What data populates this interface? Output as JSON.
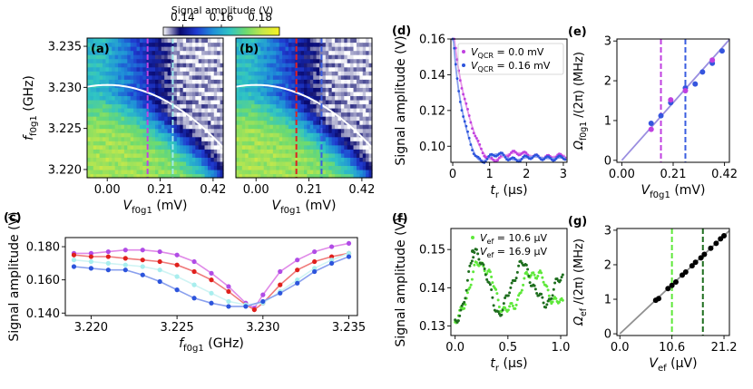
{
  "colorbar": {
    "label": "Signal amplitude (V)",
    "ticks": [
      "0.14",
      "0.16",
      "0.18"
    ],
    "range": [
      0.13,
      0.19
    ],
    "colormap": [
      "#ffffff",
      "#0a0a6e",
      "#1f3ad0",
      "#1f8fd8",
      "#30c4c4",
      "#6fdb6e",
      "#c6e84a",
      "#f9f221"
    ]
  },
  "chart_data": [
    {
      "id": "a",
      "panel_label": "(a)",
      "type": "heatmap",
      "xlabel": "V",
      "xlabel_sub": "f0g1",
      "xlabel_unit": "(mV)",
      "ylabel": "f",
      "ylabel_sub": "f0g1",
      "ylabel_unit": "(GHz)",
      "xlim": [
        -0.08,
        0.46
      ],
      "ylim": [
        3.219,
        3.236
      ],
      "xticks": [
        "0.00",
        "0.21",
        "0.42"
      ],
      "xtick_values": [
        0.0,
        0.21,
        0.42
      ],
      "yticks": [
        "3.220",
        "3.225",
        "3.230",
        "3.235"
      ],
      "ytick_values": [
        3.22,
        3.225,
        3.23,
        3.235
      ],
      "resonance": {
        "f0": 3.2303,
        "k": 0.036,
        "color": "#ffffff"
      },
      "vlines": [
        {
          "x": 0.16,
          "color": "#c045e0"
        },
        {
          "x": 0.26,
          "color": "#a0ecec"
        }
      ]
    },
    {
      "id": "b",
      "panel_label": "(b)",
      "type": "heatmap",
      "xlabel": "V",
      "xlabel_sub": "f0g1",
      "xlabel_unit": "(mV)",
      "xlim": [
        -0.08,
        0.46
      ],
      "ylim": [
        3.219,
        3.236
      ],
      "xticks": [
        "0.00",
        "0.21",
        "0.42"
      ],
      "xtick_values": [
        0.0,
        0.21,
        0.42
      ],
      "resonance": {
        "f0": 3.2303,
        "k": 0.036,
        "color": "#ffffff"
      },
      "vlines": [
        {
          "x": 0.16,
          "color": "#e02020"
        },
        {
          "x": 0.26,
          "color": "#3a5de0"
        }
      ]
    },
    {
      "id": "c",
      "panel_label": "(c)",
      "type": "scatter",
      "xlabel": "f",
      "xlabel_sub": "f0g1",
      "xlabel_unit": "(GHz)",
      "ylabel": "Signal amplitude (V)",
      "xlim": [
        3.2185,
        3.2355
      ],
      "ylim": [
        0.1385,
        0.1855
      ],
      "xticks": [
        "3.220",
        "3.225",
        "3.230",
        "3.235"
      ],
      "xtick_values": [
        3.22,
        3.225,
        3.23,
        3.235
      ],
      "yticks": [
        "0.140",
        "0.160",
        "0.180"
      ],
      "ytick_values": [
        0.14,
        0.16,
        0.18
      ],
      "series": [
        {
          "name": "purple",
          "color": "#b04ce6",
          "fit": "#e08ae8",
          "x": [
            3.219,
            3.22,
            3.221,
            3.222,
            3.223,
            3.224,
            3.225,
            3.226,
            3.227,
            3.228,
            3.229,
            3.2295,
            3.23,
            3.231,
            3.232,
            3.233,
            3.234,
            3.235
          ],
          "y": [
            0.176,
            0.176,
            0.177,
            0.178,
            0.178,
            0.177,
            0.175,
            0.171,
            0.164,
            0.156,
            0.146,
            0.143,
            0.151,
            0.165,
            0.172,
            0.177,
            0.18,
            0.182
          ]
        },
        {
          "name": "red",
          "color": "#e0201c",
          "fit": "#f07a7a",
          "x": [
            3.219,
            3.22,
            3.221,
            3.222,
            3.223,
            3.224,
            3.225,
            3.226,
            3.227,
            3.228,
            3.229,
            3.2295,
            3.23,
            3.231,
            3.232,
            3.233,
            3.234,
            3.235
          ],
          "y": [
            0.175,
            0.174,
            0.174,
            0.173,
            0.172,
            0.171,
            0.169,
            0.165,
            0.16,
            0.153,
            0.145,
            0.142,
            0.146,
            0.157,
            0.166,
            0.171,
            0.174,
            0.176
          ]
        },
        {
          "name": "cyan",
          "color": "#a8eeee",
          "fit": "#cff4f4",
          "x": [
            3.219,
            3.22,
            3.221,
            3.222,
            3.223,
            3.224,
            3.225,
            3.226,
            3.227,
            3.228,
            3.229,
            3.23,
            3.231,
            3.232,
            3.233,
            3.234,
            3.235
          ],
          "y": [
            0.172,
            0.171,
            0.17,
            0.169,
            0.168,
            0.166,
            0.162,
            0.157,
            0.152,
            0.147,
            0.145,
            0.146,
            0.153,
            0.16,
            0.167,
            0.172,
            0.176
          ]
        },
        {
          "name": "blue",
          "color": "#2c54dc",
          "fit": "#8aa0ee",
          "x": [
            3.219,
            3.22,
            3.221,
            3.222,
            3.223,
            3.224,
            3.225,
            3.226,
            3.227,
            3.228,
            3.229,
            3.23,
            3.231,
            3.232,
            3.233,
            3.234,
            3.235
          ],
          "y": [
            0.168,
            0.167,
            0.166,
            0.166,
            0.163,
            0.159,
            0.154,
            0.149,
            0.146,
            0.144,
            0.144,
            0.147,
            0.152,
            0.158,
            0.165,
            0.17,
            0.174
          ]
        }
      ]
    },
    {
      "id": "d",
      "panel_label": "(d)",
      "type": "line",
      "xlabel": "t",
      "xlabel_sub": "r",
      "xlabel_unit": "(μs)",
      "ylabel": "Signal amplitude (V)",
      "xlim": [
        -0.05,
        3.1
      ],
      "ylim": [
        0.091,
        0.16
      ],
      "xticks": [
        "0",
        "1",
        "2",
        "3"
      ],
      "xtick_values": [
        0,
        1,
        2,
        3
      ],
      "yticks": [
        "0.10",
        "0.12",
        "0.14",
        "0.16"
      ],
      "ytick_values": [
        0.1,
        0.12,
        0.14,
        0.16
      ],
      "series": [
        {
          "name": "V",
          "name_sub": "QCR",
          "name_rest": " = 0.0 mV",
          "color": "#c040e0",
          "fit": "#e89ae8",
          "model": {
            "base": 0.0945,
            "amp": 0.075,
            "tau": 0.28,
            "osc": 0.02,
            "freq": 0.7,
            "phase": 1.5
          }
        },
        {
          "name": "V",
          "name_sub": "QCR",
          "name_rest": " = 0.16 mV",
          "color": "#2c54dc",
          "fit": "#8aa0ee",
          "model": {
            "base": 0.0935,
            "amp": 0.075,
            "tau": 0.2,
            "osc": 0.013,
            "freq": 1.05,
            "phase": 1.2
          }
        }
      ]
    },
    {
      "id": "e",
      "panel_label": "(e)",
      "type": "scatter",
      "xlabel": "V",
      "xlabel_sub": "f0g1",
      "xlabel_unit": "(mV)",
      "ylabel": "Ω",
      "ylabel_sub": "f0g1",
      "ylabel_unit": "/(2π) (MHz)",
      "xlim": [
        -0.02,
        0.44
      ],
      "ylim": [
        -0.05,
        3.05
      ],
      "xticks": [
        "0.00",
        "0.21",
        "0.42"
      ],
      "xtick_values": [
        0.0,
        0.21,
        0.42
      ],
      "yticks": [
        "0",
        "1",
        "2",
        "3"
      ],
      "ytick_values": [
        0,
        1,
        2,
        3
      ],
      "fit_line": {
        "slope": 6.9,
        "color": "#9a8ee0"
      },
      "vlines": [
        {
          "x": 0.16,
          "color": "#c040e0"
        },
        {
          "x": 0.26,
          "color": "#3a5de0"
        }
      ],
      "series": [
        {
          "name": "blue",
          "color": "#3555de",
          "x": [
            0.12,
            0.16,
            0.2,
            0.26,
            0.3,
            0.33,
            0.37,
            0.41
          ],
          "y": [
            0.93,
            1.12,
            1.45,
            1.82,
            1.92,
            2.22,
            2.44,
            2.75
          ]
        },
        {
          "name": "purple",
          "color": "#c040e0",
          "x": [
            0.12,
            0.2,
            0.26,
            0.37
          ],
          "y": [
            0.78,
            1.52,
            1.75,
            2.52
          ]
        }
      ]
    },
    {
      "id": "f",
      "panel_label": "(f)",
      "type": "line",
      "xlabel": "t",
      "xlabel_sub": "r",
      "xlabel_unit": "(μs)",
      "ylabel": "Signal amplitude (V)",
      "xlim": [
        -0.04,
        1.06
      ],
      "ylim": [
        0.1275,
        0.1555
      ],
      "xticks": [
        "0.0",
        "0.5",
        "1.0"
      ],
      "xtick_values": [
        0.0,
        0.5,
        1.0
      ],
      "yticks": [
        "0.13",
        "0.14",
        "0.15"
      ],
      "ytick_values": [
        0.13,
        0.14,
        0.15
      ],
      "series": [
        {
          "name": "V",
          "name_sub": "ef",
          "name_rest": " = 10.6 μV",
          "color": "#5ee83a",
          "model": {
            "base": 0.1395,
            "amp": 0.0085,
            "freq": 2.0,
            "decay": 1.2
          }
        },
        {
          "name": "V",
          "name_sub": "ef",
          "name_rest": " = 16.9 μV",
          "color": "#1e6e1e",
          "model": {
            "base": 0.1405,
            "amp": 0.0105,
            "freq": 2.35,
            "decay": 0.95
          }
        }
      ]
    },
    {
      "id": "g",
      "panel_label": "(g)",
      "type": "scatter",
      "xlabel": "V",
      "xlabel_sub": "ef",
      "xlabel_unit": "(μV)",
      "ylabel": "Ω",
      "ylabel_sub": "ef",
      "ylabel_unit": "/(2π) (MHz)",
      "xlim": [
        -0.6,
        22.3
      ],
      "ylim": [
        -0.05,
        3.05
      ],
      "xticks": [
        "0.0",
        "10.6",
        "21.2"
      ],
      "xtick_values": [
        0.0,
        10.6,
        21.2
      ],
      "yticks": [
        "0",
        "1",
        "2",
        "3"
      ],
      "ytick_values": [
        0,
        1,
        2,
        3
      ],
      "fit_line": {
        "slope": 0.134,
        "color": "#909090"
      },
      "vlines": [
        {
          "x": 10.6,
          "color": "#5ee83a"
        },
        {
          "x": 16.9,
          "color": "#1e6e1e"
        }
      ],
      "series": [
        {
          "name": "points",
          "color": "#000000",
          "x": [
            7.3,
            7.9,
            9.8,
            10.6,
            11.4,
            12.7,
            13.4,
            14.7,
            15.4,
            16.5,
            17.2,
            18.5,
            19.6,
            20.5,
            21.2
          ],
          "y": [
            0.97,
            1.02,
            1.31,
            1.4,
            1.5,
            1.7,
            1.79,
            1.97,
            2.07,
            2.2,
            2.3,
            2.48,
            2.62,
            2.75,
            2.84
          ]
        }
      ]
    }
  ]
}
